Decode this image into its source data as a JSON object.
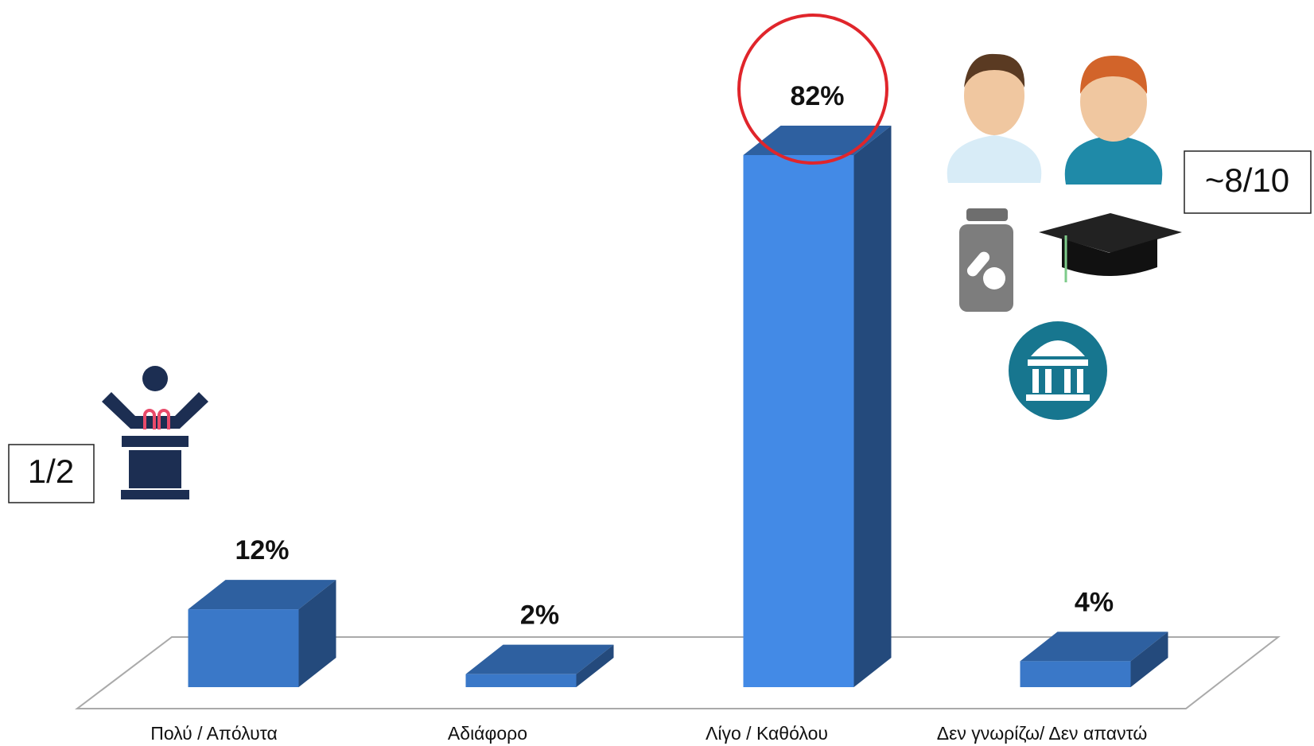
{
  "chart_data": {
    "type": "bar3d",
    "categories": [
      "Πολύ / Απόλυτα",
      "Αδιάφορο",
      "Λίγο / Καθόλου",
      "Δεν γνωρίζω/ Δεν απαντώ"
    ],
    "values": [
      12,
      2,
      82,
      4
    ],
    "value_labels": [
      "12%",
      "2%",
      "82%",
      "4%"
    ],
    "color": "#3a78c8",
    "annotations": [
      "1/2",
      "~8/10"
    ]
  }
}
